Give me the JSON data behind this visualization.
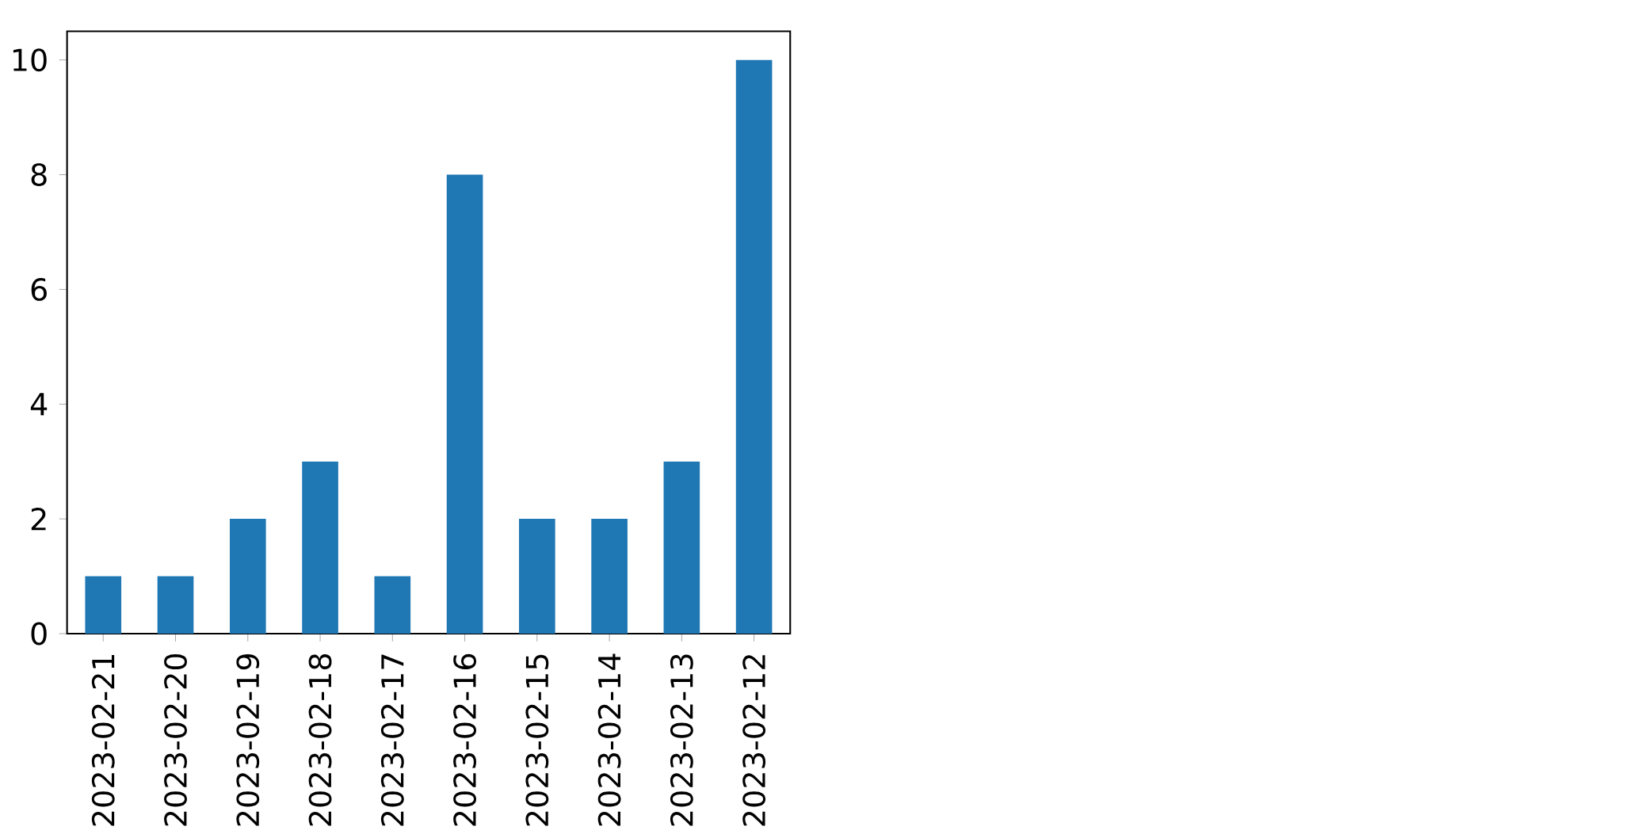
{
  "chart_data": {
    "type": "bar",
    "categories": [
      "2023-02-21",
      "2023-02-20",
      "2023-02-19",
      "2023-02-18",
      "2023-02-17",
      "2023-02-16",
      "2023-02-15",
      "2023-02-14",
      "2023-02-13",
      "2023-02-12"
    ],
    "values": [
      1,
      1,
      2,
      3,
      1,
      8,
      2,
      2,
      3,
      10
    ],
    "color": "#1f77b4",
    "ylim": [
      0,
      10.5
    ],
    "yticks": [
      0,
      2,
      4,
      6,
      8,
      10
    ]
  }
}
